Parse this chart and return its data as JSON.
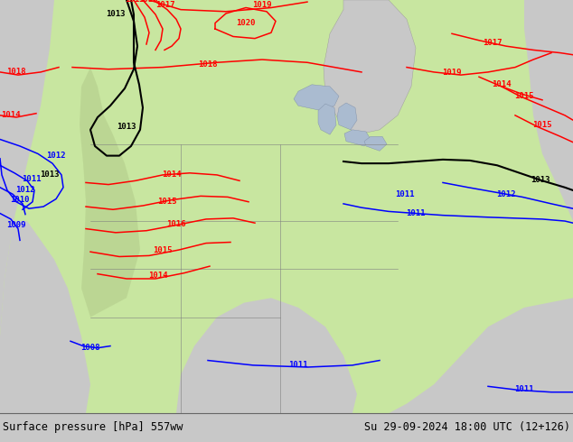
{
  "title_left": "Surface pressure [hPa] 557ww",
  "title_right": "Su 29-09-2024 18:00 UTC (12+126)",
  "footer_fontsize": 8.5,
  "land_color": "#c8e6a0",
  "ocean_color": "#c8c8c8",
  "mountain_color": "#b8c890",
  "footer_bg": "#c8c8c8",
  "fig_bg": "#c8c8c8",
  "label_fontsize": 6.5,
  "contour_lw": 1.1,
  "black_lw": 1.5
}
